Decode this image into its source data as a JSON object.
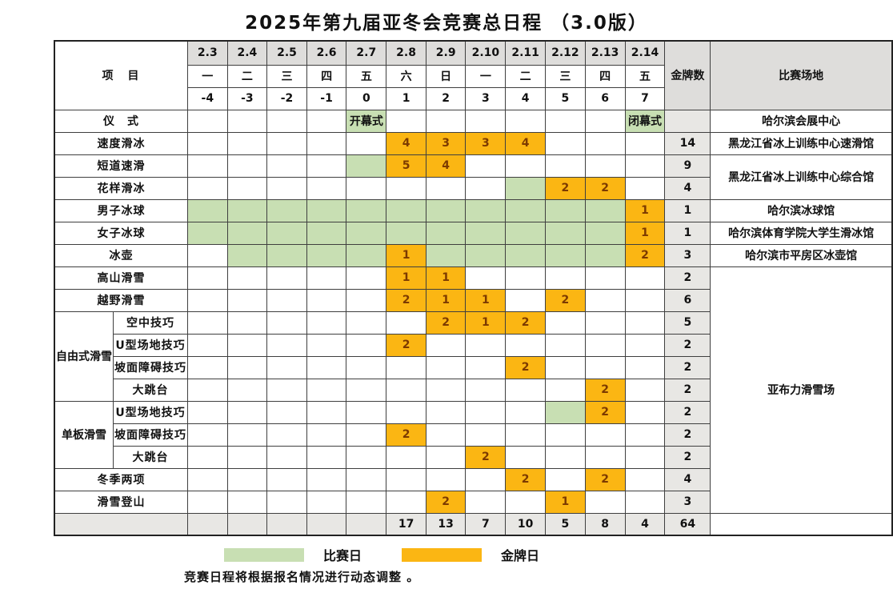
{
  "title": "2025年第九届亚冬会竞赛总日程 （3.0版）",
  "colors": {
    "gold_day": "#FBB613",
    "gold_day_text": "#7C3A00",
    "competition_day": "#C8DFB3",
    "header_gray": "#DEDDDB",
    "stat_gray": "#E8E7E4"
  },
  "header": {
    "project_label": "项　目",
    "dates": [
      "2.3",
      "2.4",
      "2.5",
      "2.6",
      "2.7",
      "2.8",
      "2.9",
      "2.10",
      "2.11",
      "2.12",
      "2.13",
      "2.14"
    ],
    "weekdays": [
      "一",
      "二",
      "三",
      "四",
      "五",
      "六",
      "日",
      "一",
      "二",
      "三",
      "四",
      "五"
    ],
    "day_numbers": [
      "-4",
      "-3",
      "-2",
      "-1",
      "0",
      "1",
      "2",
      "3",
      "4",
      "5",
      "6",
      "7"
    ],
    "gold_label": "金牌数",
    "venue_label": "比赛场地"
  },
  "rows": [
    {
      "label": "仪　式",
      "label_colspan": 2,
      "cells": [
        [
          "",
          "w"
        ],
        [
          "",
          "w"
        ],
        [
          "",
          "w"
        ],
        [
          "",
          "w"
        ],
        [
          "开幕式",
          "g"
        ],
        [
          "",
          "w"
        ],
        [
          "",
          "w"
        ],
        [
          "",
          "w"
        ],
        [
          "",
          "w"
        ],
        [
          "",
          "w"
        ],
        [
          "",
          "w"
        ],
        [
          "闭幕式",
          "g"
        ]
      ],
      "gold": "",
      "venue": {
        "label": "哈尔滨会展中心",
        "rowspan": 1
      }
    },
    {
      "label": "速度滑冰",
      "label_colspan": 2,
      "cells": [
        [
          "",
          "w"
        ],
        [
          "",
          "w"
        ],
        [
          "",
          "w"
        ],
        [
          "",
          "w"
        ],
        [
          "",
          "w"
        ],
        [
          "4",
          "o"
        ],
        [
          "3",
          "o"
        ],
        [
          "3",
          "o"
        ],
        [
          "4",
          "o"
        ],
        [
          "",
          "w"
        ],
        [
          "",
          "w"
        ],
        [
          "",
          "w"
        ]
      ],
      "gold": "14",
      "venue": {
        "label": "黑龙江省冰上训练中心速滑馆",
        "rowspan": 1
      }
    },
    {
      "label": "短道速滑",
      "label_colspan": 2,
      "cells": [
        [
          "",
          "w"
        ],
        [
          "",
          "w"
        ],
        [
          "",
          "w"
        ],
        [
          "",
          "w"
        ],
        [
          "",
          "g"
        ],
        [
          "5",
          "o"
        ],
        [
          "4",
          "o"
        ],
        [
          "",
          "w"
        ],
        [
          "",
          "w"
        ],
        [
          "",
          "w"
        ],
        [
          "",
          "w"
        ],
        [
          "",
          "w"
        ]
      ],
      "gold": "9",
      "venue": {
        "label": "黑龙江省冰上训练中心综合馆",
        "rowspan": 2
      }
    },
    {
      "label": "花样滑冰",
      "label_colspan": 2,
      "cells": [
        [
          "",
          "w"
        ],
        [
          "",
          "w"
        ],
        [
          "",
          "w"
        ],
        [
          "",
          "w"
        ],
        [
          "",
          "w"
        ],
        [
          "",
          "w"
        ],
        [
          "",
          "w"
        ],
        [
          "",
          "w"
        ],
        [
          "",
          "g"
        ],
        [
          "2",
          "o"
        ],
        [
          "2",
          "o"
        ],
        [
          "",
          "w"
        ]
      ],
      "gold": "4",
      "venue": null
    },
    {
      "label": "男子冰球",
      "label_colspan": 2,
      "cells": [
        [
          "",
          "g"
        ],
        [
          "",
          "g"
        ],
        [
          "",
          "g"
        ],
        [
          "",
          "g"
        ],
        [
          "",
          "g"
        ],
        [
          "",
          "g"
        ],
        [
          "",
          "g"
        ],
        [
          "",
          "g"
        ],
        [
          "",
          "g"
        ],
        [
          "",
          "g"
        ],
        [
          "",
          "g"
        ],
        [
          "1",
          "o"
        ]
      ],
      "gold": "1",
      "venue": {
        "label": "哈尔滨冰球馆",
        "rowspan": 1
      }
    },
    {
      "label": "女子冰球",
      "label_colspan": 2,
      "cells": [
        [
          "",
          "g"
        ],
        [
          "",
          "g"
        ],
        [
          "",
          "g"
        ],
        [
          "",
          "g"
        ],
        [
          "",
          "g"
        ],
        [
          "",
          "g"
        ],
        [
          "",
          "g"
        ],
        [
          "",
          "g"
        ],
        [
          "",
          "g"
        ],
        [
          "",
          "g"
        ],
        [
          "",
          "g"
        ],
        [
          "1",
          "o"
        ]
      ],
      "gold": "1",
      "venue": {
        "label": "哈尔滨体育学院大学生滑冰馆",
        "rowspan": 1
      }
    },
    {
      "label": "冰壶",
      "label_colspan": 2,
      "cells": [
        [
          "",
          "w"
        ],
        [
          "",
          "g"
        ],
        [
          "",
          "g"
        ],
        [
          "",
          "g"
        ],
        [
          "",
          "g"
        ],
        [
          "1",
          "o"
        ],
        [
          "",
          "g"
        ],
        [
          "",
          "g"
        ],
        [
          "",
          "g"
        ],
        [
          "",
          "g"
        ],
        [
          "",
          "g"
        ],
        [
          "2",
          "o"
        ]
      ],
      "gold": "3",
      "venue": {
        "label": "哈尔滨市平房区冰壶馆",
        "rowspan": 1
      }
    },
    {
      "label": "高山滑雪",
      "label_colspan": 2,
      "cells": [
        [
          "",
          "w"
        ],
        [
          "",
          "w"
        ],
        [
          "",
          "w"
        ],
        [
          "",
          "w"
        ],
        [
          "",
          "w"
        ],
        [
          "1",
          "o"
        ],
        [
          "1",
          "o"
        ],
        [
          "",
          "w"
        ],
        [
          "",
          "w"
        ],
        [
          "",
          "w"
        ],
        [
          "",
          "w"
        ],
        [
          "",
          "w"
        ]
      ],
      "gold": "2",
      "venue": {
        "label": "亚布力滑雪场",
        "rowspan": 11
      }
    },
    {
      "label": "越野滑雪",
      "label_colspan": 2,
      "cells": [
        [
          "",
          "w"
        ],
        [
          "",
          "w"
        ],
        [
          "",
          "w"
        ],
        [
          "",
          "w"
        ],
        [
          "",
          "w"
        ],
        [
          "2",
          "o"
        ],
        [
          "1",
          "o"
        ],
        [
          "1",
          "o"
        ],
        [
          "",
          "w"
        ],
        [
          "2",
          "o"
        ],
        [
          "",
          "w"
        ],
        [
          "",
          "w"
        ]
      ],
      "gold": "6",
      "venue": null
    },
    {
      "group": {
        "label": "自由式滑雪",
        "rowspan": 4
      },
      "label": "空中技巧",
      "label_colspan": 1,
      "cells": [
        [
          "",
          "w"
        ],
        [
          "",
          "w"
        ],
        [
          "",
          "w"
        ],
        [
          "",
          "w"
        ],
        [
          "",
          "w"
        ],
        [
          "",
          "w"
        ],
        [
          "2",
          "o"
        ],
        [
          "1",
          "o"
        ],
        [
          "2",
          "o"
        ],
        [
          "",
          "w"
        ],
        [
          "",
          "w"
        ],
        [
          "",
          "w"
        ]
      ],
      "gold": "5",
      "venue": null
    },
    {
      "label": "U型场地技巧",
      "label_colspan": 1,
      "cells": [
        [
          "",
          "w"
        ],
        [
          "",
          "w"
        ],
        [
          "",
          "w"
        ],
        [
          "",
          "w"
        ],
        [
          "",
          "w"
        ],
        [
          "2",
          "o"
        ],
        [
          "",
          "w"
        ],
        [
          "",
          "w"
        ],
        [
          "",
          "w"
        ],
        [
          "",
          "w"
        ],
        [
          "",
          "w"
        ],
        [
          "",
          "w"
        ]
      ],
      "gold": "2",
      "venue": null
    },
    {
      "label": "坡面障碍技巧",
      "label_colspan": 1,
      "cells": [
        [
          "",
          "w"
        ],
        [
          "",
          "w"
        ],
        [
          "",
          "w"
        ],
        [
          "",
          "w"
        ],
        [
          "",
          "w"
        ],
        [
          "",
          "w"
        ],
        [
          "",
          "w"
        ],
        [
          "",
          "w"
        ],
        [
          "2",
          "o"
        ],
        [
          "",
          "w"
        ],
        [
          "",
          "w"
        ],
        [
          "",
          "w"
        ]
      ],
      "gold": "2",
      "venue": null
    },
    {
      "label": "大跳台",
      "label_colspan": 1,
      "cells": [
        [
          "",
          "w"
        ],
        [
          "",
          "w"
        ],
        [
          "",
          "w"
        ],
        [
          "",
          "w"
        ],
        [
          "",
          "w"
        ],
        [
          "",
          "w"
        ],
        [
          "",
          "w"
        ],
        [
          "",
          "w"
        ],
        [
          "",
          "w"
        ],
        [
          "",
          "w"
        ],
        [
          "2",
          "o"
        ],
        [
          "",
          "w"
        ]
      ],
      "gold": "2",
      "venue": null
    },
    {
      "group": {
        "label": "单板滑雪",
        "rowspan": 3
      },
      "label": "U型场地技巧",
      "label_colspan": 1,
      "cells": [
        [
          "",
          "w"
        ],
        [
          "",
          "w"
        ],
        [
          "",
          "w"
        ],
        [
          "",
          "w"
        ],
        [
          "",
          "w"
        ],
        [
          "",
          "w"
        ],
        [
          "",
          "w"
        ],
        [
          "",
          "w"
        ],
        [
          "",
          "w"
        ],
        [
          "",
          "g"
        ],
        [
          "2",
          "o"
        ],
        [
          "",
          "w"
        ]
      ],
      "gold": "2",
      "venue": null
    },
    {
      "label": "坡面障碍技巧",
      "label_colspan": 1,
      "cells": [
        [
          "",
          "w"
        ],
        [
          "",
          "w"
        ],
        [
          "",
          "w"
        ],
        [
          "",
          "w"
        ],
        [
          "",
          "w"
        ],
        [
          "2",
          "o"
        ],
        [
          "",
          "w"
        ],
        [
          "",
          "w"
        ],
        [
          "",
          "w"
        ],
        [
          "",
          "w"
        ],
        [
          "",
          "w"
        ],
        [
          "",
          "w"
        ]
      ],
      "gold": "2",
      "venue": null
    },
    {
      "label": "大跳台",
      "label_colspan": 1,
      "cells": [
        [
          "",
          "w"
        ],
        [
          "",
          "w"
        ],
        [
          "",
          "w"
        ],
        [
          "",
          "w"
        ],
        [
          "",
          "w"
        ],
        [
          "",
          "w"
        ],
        [
          "",
          "w"
        ],
        [
          "2",
          "o"
        ],
        [
          "",
          "w"
        ],
        [
          "",
          "w"
        ],
        [
          "",
          "w"
        ],
        [
          "",
          "w"
        ]
      ],
      "gold": "2",
      "venue": null
    },
    {
      "label": "冬季两项",
      "label_colspan": 2,
      "cells": [
        [
          "",
          "w"
        ],
        [
          "",
          "w"
        ],
        [
          "",
          "w"
        ],
        [
          "",
          "w"
        ],
        [
          "",
          "w"
        ],
        [
          "",
          "w"
        ],
        [
          "",
          "w"
        ],
        [
          "",
          "w"
        ],
        [
          "2",
          "o"
        ],
        [
          "",
          "w"
        ],
        [
          "2",
          "o"
        ],
        [
          "",
          "w"
        ]
      ],
      "gold": "4",
      "venue": null
    },
    {
      "label": "滑雪登山",
      "label_colspan": 2,
      "cells": [
        [
          "",
          "w"
        ],
        [
          "",
          "w"
        ],
        [
          "",
          "w"
        ],
        [
          "",
          "w"
        ],
        [
          "",
          "w"
        ],
        [
          "",
          "w"
        ],
        [
          "2",
          "o"
        ],
        [
          "",
          "w"
        ],
        [
          "",
          "w"
        ],
        [
          "1",
          "o"
        ],
        [
          "",
          "w"
        ],
        [
          "",
          "w"
        ]
      ],
      "gold": "3",
      "venue": null
    }
  ],
  "totals": {
    "label": "",
    "values": [
      "",
      "",
      "",
      "",
      "",
      "17",
      "13",
      "7",
      "10",
      "5",
      "8",
      "4"
    ],
    "gold": "64"
  },
  "legend": {
    "competition_day_label": "比赛日",
    "gold_day_label": "金牌日"
  },
  "note": "竞赛日程将根据报名情况进行动态调整 。"
}
